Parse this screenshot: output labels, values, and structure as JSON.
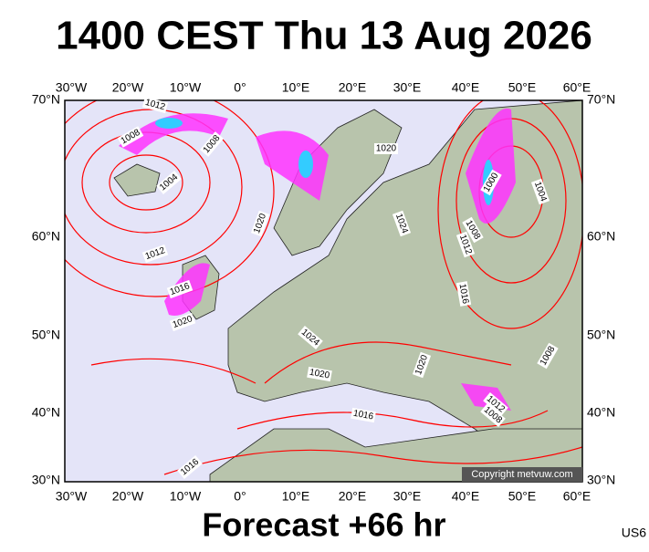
{
  "title": "1400 CEST Thu 13 Aug 2026",
  "longitude_labels": [
    "30°W",
    "20°W",
    "10°W",
    "0°",
    "10°E",
    "20°E",
    "30°E",
    "40°E",
    "50°E",
    "60°E"
  ],
  "latitude_labels": [
    "70°N",
    "60°N",
    "50°N",
    "40°N",
    "30°N"
  ],
  "isobar_labels": [
    "1012",
    "1008",
    "1008",
    "1004",
    "1020",
    "1024",
    "1020",
    "1012",
    "1016",
    "1020",
    "1024",
    "1020",
    "1016",
    "1020",
    "1000",
    "1004",
    "1008",
    "1012",
    "1016",
    "1008",
    "1012",
    "1008",
    "1016"
  ],
  "copyright": "Copyright metvuw.com",
  "footer": "Forecast +66 hr",
  "code": "US6"
}
